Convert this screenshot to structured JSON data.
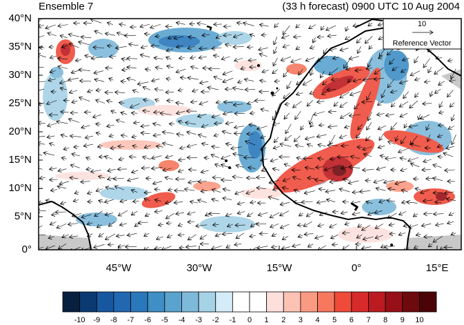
{
  "title_left": "Ensemble 7",
  "title_right": "(33 h forecast) 0900 UTC 10 Aug 2004",
  "lat_ticks": [
    "40°N",
    "35°N",
    "30°N",
    "25°N",
    "20°N",
    "15°N",
    "10°N",
    "5°N",
    "0°"
  ],
  "lon_ticks": [
    "45°W",
    "30°W",
    "15°W",
    "0°",
    "15°E"
  ],
  "reference_vector": {
    "value": "10",
    "label": "Reference Vector"
  },
  "colorbar": {
    "labels": [
      "-10",
      "-9",
      "-8",
      "-7",
      "-6",
      "-5",
      "-4",
      "-3",
      "-2",
      "-1",
      "0",
      "1",
      "2",
      "3",
      "4",
      "5",
      "6",
      "7",
      "8",
      "9",
      "10"
    ],
    "colors": [
      "#08203f",
      "#0b3a73",
      "#1757a0",
      "#2168b0",
      "#2a78bc",
      "#3f8fc6",
      "#5aa3cf",
      "#7eb9da",
      "#a6d2e6",
      "#d4ecf7",
      "#ffffff",
      "#ffffff",
      "#fde0dc",
      "#fcc3b5",
      "#fb9a82",
      "#f6785f",
      "#ef4b3a",
      "#d72a2a",
      "#bb1b20",
      "#981017",
      "#6e0a0e",
      "#4a0408"
    ]
  }
}
